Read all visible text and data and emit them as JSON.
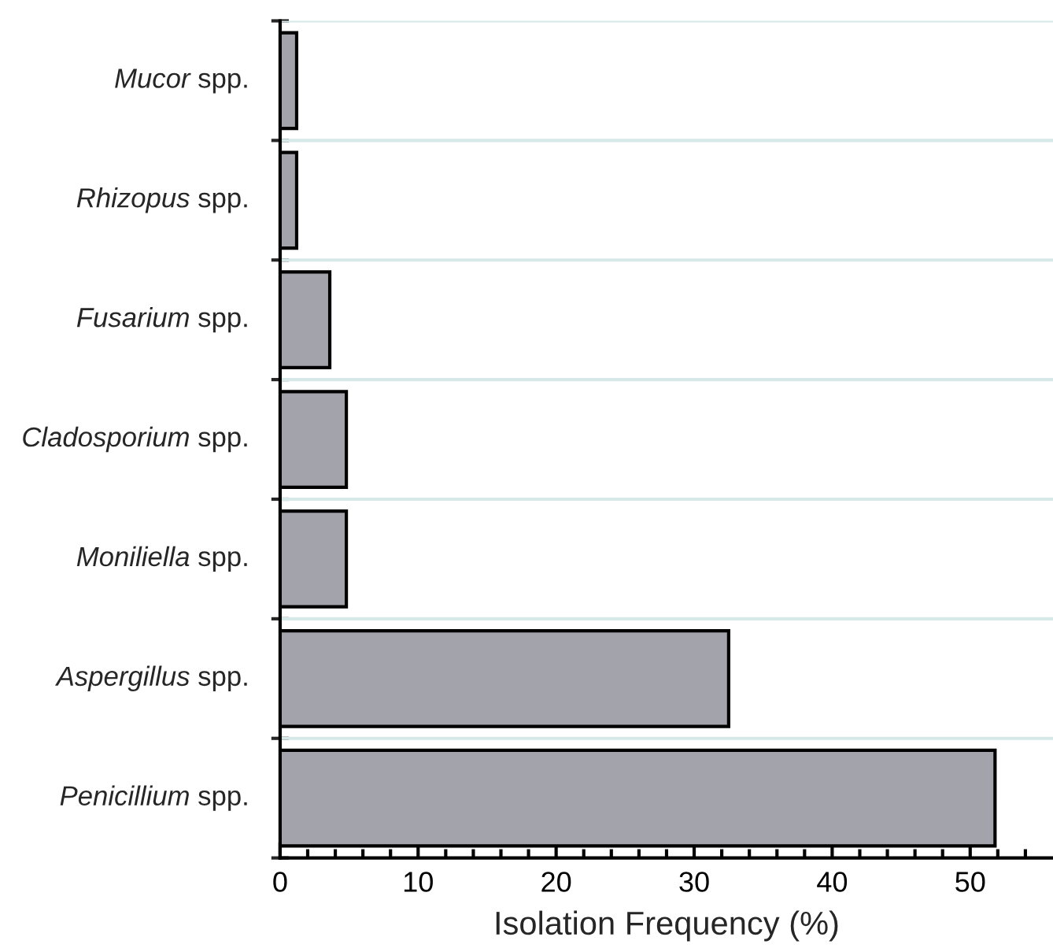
{
  "chart_data": {
    "type": "bar",
    "orientation": "horizontal",
    "xlabel": "Isolation Frequency (%)",
    "categories": [
      "Mucor spp.",
      "Rhizopus spp.",
      "Fusarium spp.",
      "Cladosporium spp.",
      "Moniliella spp.",
      "Aspergillus spp.",
      "Penicillium spp."
    ],
    "values": [
      1.2,
      1.2,
      3.6,
      4.8,
      4.8,
      32.5,
      51.8
    ],
    "color": "#a2a3ab",
    "xlim": [
      0,
      56
    ],
    "xticks": [
      0,
      {
        "value": 2,
        "label": null
      },
      {
        "value": 4,
        "label": null
      },
      {
        "value": 6,
        "label": null
      },
      {
        "value": 8,
        "label": null
      },
      10,
      {
        "value": 12,
        "label": null
      },
      {
        "value": 14,
        "label": null
      },
      {
        "value": 16,
        "label": null
      },
      {
        "value": 18,
        "label": null
      },
      20,
      {
        "value": 22,
        "label": null
      },
      {
        "value": 24,
        "label": null
      },
      {
        "value": 26,
        "label": null
      },
      {
        "value": 28,
        "label": null
      },
      30,
      {
        "value": 32,
        "label": null
      },
      {
        "value": 34,
        "label": null
      },
      {
        "value": 36,
        "label": null
      },
      {
        "value": 38,
        "label": null
      },
      40,
      {
        "value": 42,
        "label": null
      },
      {
        "value": 44,
        "label": null
      },
      {
        "value": 46,
        "label": null
      },
      {
        "value": 48,
        "label": null
      },
      50,
      {
        "value": 52,
        "label": null
      },
      {
        "value": 54,
        "label": null
      }
    ],
    "grid": "y"
  }
}
